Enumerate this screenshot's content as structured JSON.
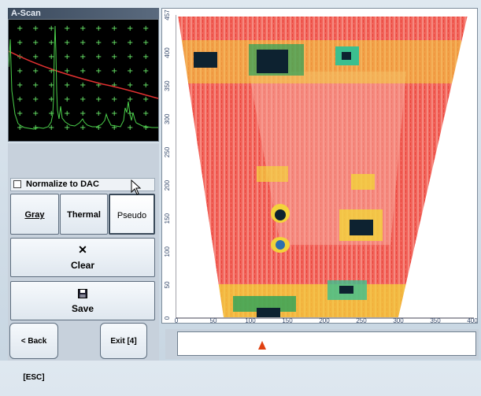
{
  "ascan": {
    "title": "A-Scan"
  },
  "controls": {
    "normalize_label": "Normalize to DAC",
    "normalize_checked": false,
    "palette_buttons": [
      "Gray",
      "Thermal",
      "Pseudo"
    ],
    "palette_active": "Pseudo",
    "clear_label": "Clear",
    "save_label": "Save",
    "back_label": "< Back [ESC]",
    "exit_label": "Exit [4]"
  },
  "scan_view": {
    "y_ticks": [
      "0",
      "50",
      "100",
      "150",
      "200",
      "250",
      "300",
      "350",
      "400",
      "457"
    ],
    "x_ticks": [
      "0",
      "50",
      "100",
      "150",
      "200",
      "250",
      "300",
      "350",
      "400"
    ],
    "palette": "Pseudo"
  },
  "colors": {
    "accent_marker": "#e04010",
    "background_red": "#f06050",
    "ascan_trace": "#4ad04a",
    "dac_curve": "#e03030"
  },
  "icons": {
    "clear": "close-icon",
    "save": "floppy-disk-icon",
    "cursor": "mouse-pointer-icon"
  }
}
